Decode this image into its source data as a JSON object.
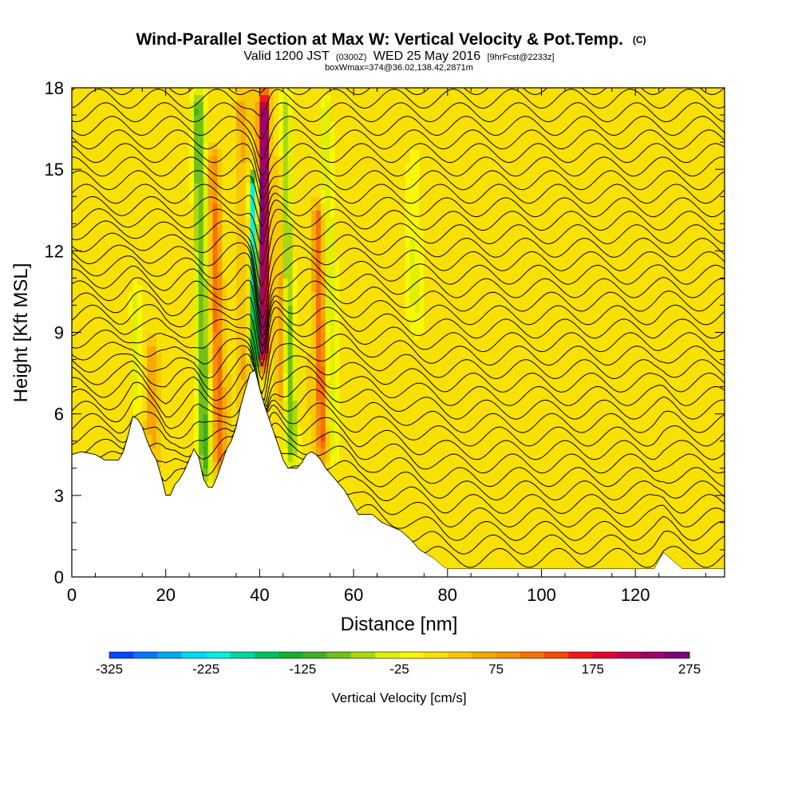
{
  "chart_data": {
    "type": "heatmap",
    "title": "Wind-Parallel Section at Max W: Vertical Velocity & Pot.Temp.",
    "title_mark": "(C)",
    "subtitle": {
      "valid_prefix": "Valid 1200 JST",
      "valid_utc": "(0300Z)",
      "valid_date": "WED 25 May 2016",
      "forecast": "[9hrFcst@2233z]"
    },
    "box_info": "boxWmax=374@36.02,138.42,2871m",
    "xlabel": "Distance [nm]",
    "ylabel": "Height [Kft MSL]",
    "xlim": [
      0,
      139
    ],
    "ylim": [
      0,
      18
    ],
    "x_ticks": [
      0,
      20,
      40,
      60,
      80,
      100,
      120
    ],
    "y_ticks": [
      0,
      3,
      6,
      9,
      12,
      15,
      18
    ],
    "colorbar": {
      "label": "Vertical Velocity [cm/s]",
      "min": -325,
      "max": 275,
      "step": 25,
      "tick_values": [
        -325,
        -225,
        -125,
        -25,
        75,
        175,
        275
      ],
      "tick_labels": [
        "-325",
        "-225",
        "-125",
        "-25",
        "75",
        "175",
        "275"
      ],
      "colors": [
        "#0018f0",
        "#0048f8",
        "#0078f8",
        "#00a8f8",
        "#00d8f8",
        "#00f0e0",
        "#00d8a0",
        "#00c060",
        "#10b030",
        "#40b020",
        "#70c018",
        "#a8d810",
        "#e0f000",
        "#f8f800",
        "#f8e000",
        "#f8c800",
        "#f8a800",
        "#f89000",
        "#f87000",
        "#f84800",
        "#f01818",
        "#e00030",
        "#c00050",
        "#a00068",
        "#800078",
        "#500070"
      ]
    },
    "terrain_height_kft": [
      [
        0,
        4.5
      ],
      [
        2,
        4.6
      ],
      [
        5,
        4.5
      ],
      [
        7,
        4.3
      ],
      [
        10,
        4.3
      ],
      [
        11,
        4.6
      ],
      [
        12,
        5.2
      ],
      [
        13,
        5.9
      ],
      [
        14,
        5.8
      ],
      [
        15,
        5.5
      ],
      [
        16,
        5.0
      ],
      [
        17,
        4.6
      ],
      [
        18,
        4.3
      ],
      [
        19,
        3.7
      ],
      [
        20,
        3.0
      ],
      [
        21,
        3.0
      ],
      [
        22,
        3.4
      ],
      [
        23,
        3.6
      ],
      [
        24,
        3.9
      ],
      [
        25,
        4.3
      ],
      [
        26,
        4.7
      ],
      [
        27,
        4.4
      ],
      [
        28,
        3.6
      ],
      [
        29,
        3.3
      ],
      [
        30,
        3.3
      ],
      [
        31,
        3.7
      ],
      [
        32,
        4.2
      ],
      [
        33,
        4.7
      ],
      [
        34,
        5.0
      ],
      [
        35,
        5.5
      ],
      [
        36,
        6.3
      ],
      [
        37,
        6.9
      ],
      [
        38,
        7.5
      ],
      [
        39,
        7.6
      ],
      [
        40,
        6.9
      ],
      [
        41,
        6.3
      ],
      [
        42,
        5.8
      ],
      [
        43,
        5.3
      ],
      [
        44,
        4.8
      ],
      [
        45,
        4.3
      ],
      [
        46,
        4.0
      ],
      [
        47,
        4.0
      ],
      [
        48,
        4.0
      ],
      [
        49,
        4.2
      ],
      [
        50,
        4.5
      ],
      [
        51,
        4.6
      ],
      [
        52,
        4.5
      ],
      [
        53,
        4.3
      ],
      [
        54,
        4.0
      ],
      [
        55,
        3.8
      ],
      [
        56,
        3.6
      ],
      [
        57,
        3.4
      ],
      [
        58,
        3.2
      ],
      [
        59,
        2.9
      ],
      [
        60,
        2.6
      ],
      [
        61,
        2.3
      ],
      [
        64,
        2.3
      ],
      [
        66,
        2.0
      ],
      [
        70,
        1.7
      ],
      [
        72,
        1.4
      ],
      [
        74,
        1.0
      ],
      [
        77,
        0.7
      ],
      [
        79,
        0.4
      ],
      [
        80,
        0.3
      ],
      [
        82,
        0.3
      ],
      [
        84,
        0.3
      ],
      [
        100,
        0.3
      ],
      [
        110,
        0.3
      ],
      [
        124,
        0.3
      ],
      [
        125,
        0.6
      ],
      [
        126,
        0.9
      ],
      [
        128,
        0.6
      ],
      [
        130,
        0.3
      ],
      [
        139,
        0.3
      ]
    ],
    "vertical_velocity_bands": [
      {
        "x": 40.8,
        "half_width_nm": 1.0,
        "bottom_kft": 7.6,
        "top_kft": 18,
        "lean": 0.02,
        "peak_cms": 275
      },
      {
        "x": 39.2,
        "half_width_nm": 0.8,
        "bottom_kft": 7.5,
        "top_kft": 15,
        "lean": -0.08,
        "peak_cms": -250
      },
      {
        "x": 28.5,
        "half_width_nm": 1.4,
        "bottom_kft": 3.4,
        "top_kft": 18,
        "lean": -0.12,
        "peak_cms": -120
      },
      {
        "x": 31.5,
        "half_width_nm": 1.2,
        "bottom_kft": 3.4,
        "top_kft": 16,
        "lean": -0.1,
        "peak_cms": 90
      },
      {
        "x": 47.0,
        "half_width_nm": 1.3,
        "bottom_kft": 4.0,
        "top_kft": 18,
        "lean": -0.15,
        "peak_cms": -110
      },
      {
        "x": 53.5,
        "half_width_nm": 1.2,
        "bottom_kft": 4.2,
        "top_kft": 14,
        "lean": -0.12,
        "peak_cms": 110
      },
      {
        "x": 55.5,
        "half_width_nm": 1.3,
        "bottom_kft": 4.0,
        "top_kft": 18,
        "lean": -0.1,
        "peak_cms": -60
      },
      {
        "x": 14.0,
        "half_width_nm": 1.2,
        "bottom_kft": 5.8,
        "top_kft": 11,
        "lean": -0.1,
        "peak_cms": -60
      },
      {
        "x": 17.5,
        "half_width_nm": 1.2,
        "bottom_kft": 4.5,
        "top_kft": 9,
        "lean": -0.1,
        "peak_cms": 50
      },
      {
        "x": 36.5,
        "half_width_nm": 1.2,
        "bottom_kft": 6.5,
        "top_kft": 18,
        "lean": -0.05,
        "peak_cms": 40
      },
      {
        "x": 44.5,
        "half_width_nm": 1.0,
        "bottom_kft": 6.0,
        "top_kft": 18,
        "lean": 0.0,
        "peak_cms": 60
      },
      {
        "x": 73.0,
        "half_width_nm": 1.5,
        "bottom_kft": 9.0,
        "top_kft": 16,
        "lean": 0.0,
        "peak_cms": -35
      }
    ],
    "potential_temperature_contour_count": 36
  }
}
